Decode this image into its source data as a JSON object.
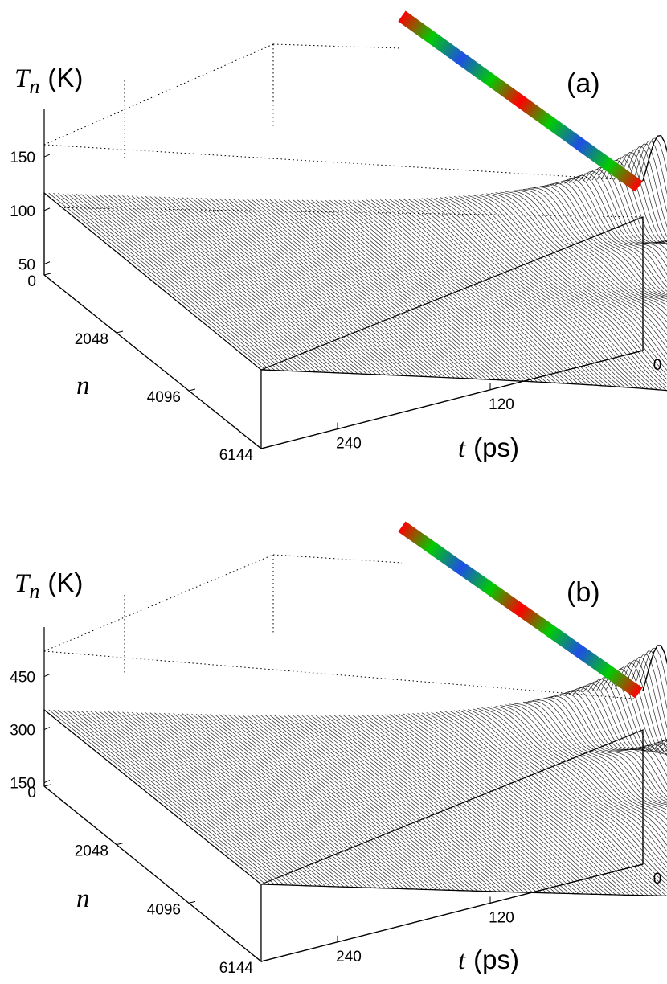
{
  "chart_data": [
    {
      "type": "surface",
      "panel_label": "(a)",
      "zlabel": {
        "var": "T",
        "sub": "n",
        "unit": "(K)"
      },
      "xlabel": {
        "var": "t",
        "unit": "(ps)"
      },
      "ylabel": {
        "var": "n"
      },
      "z_ticks": [
        "150",
        "100",
        "50"
      ],
      "z_tick_values": [
        150,
        100,
        50
      ],
      "zlim": [
        40,
        195
      ],
      "n_ticks": [
        "0",
        "2048",
        "4096",
        "6144"
      ],
      "n_tick_values": [
        0,
        2048,
        4096,
        6144
      ],
      "t_ticks": [
        "0",
        "120",
        "240"
      ],
      "t_tick_values": [
        0,
        120,
        240
      ],
      "tlim": [
        0,
        300
      ],
      "nlim": [
        0,
        6144
      ],
      "baseline_T": 110,
      "peaks": [
        {
          "n": 500,
          "t": 0,
          "T": 195
        },
        {
          "n": 2300,
          "t": 0,
          "T": 168
        },
        {
          "n": 4100,
          "t": 0,
          "T": 168
        },
        {
          "n": 6144,
          "t": 0,
          "T": 95
        }
      ],
      "colorbar_pattern": [
        "red",
        "green",
        "blue",
        "green",
        "red",
        "green",
        "blue",
        "green",
        "red"
      ],
      "colors": {
        "red": "#ff0000",
        "green": "#00cc00",
        "blue": "#1e4ee6",
        "mesh": "#000000"
      }
    },
    {
      "type": "surface",
      "panel_label": "(b)",
      "zlabel": {
        "var": "T",
        "sub": "n",
        "unit": "(K)"
      },
      "xlabel": {
        "var": "t",
        "unit": "(ps)"
      },
      "ylabel": {
        "var": "n"
      },
      "z_ticks": [
        "450",
        "300",
        "150"
      ],
      "z_tick_values": [
        450,
        300,
        150
      ],
      "zlim": [
        140,
        590
      ],
      "n_ticks": [
        "0",
        "2048",
        "4096",
        "6144"
      ],
      "n_tick_values": [
        0,
        2048,
        4096,
        6144
      ],
      "t_ticks": [
        "0",
        "120",
        "240"
      ],
      "t_tick_values": [
        0,
        120,
        240
      ],
      "tlim": [
        0,
        300
      ],
      "nlim": [
        0,
        6144
      ],
      "baseline_T": 310,
      "peaks": [
        {
          "n": 500,
          "t": 0,
          "T": 590
        },
        {
          "n": 2300,
          "t": 0,
          "T": 540
        },
        {
          "n": 4100,
          "t": 0,
          "T": 540
        },
        {
          "n": 6144,
          "t": 0,
          "T": 340
        }
      ],
      "colorbar_pattern": [
        "red",
        "green",
        "blue",
        "green",
        "red",
        "green",
        "blue",
        "green",
        "red"
      ],
      "colors": {
        "red": "#ff0000",
        "green": "#00cc00",
        "blue": "#1e4ee6",
        "mesh": "#000000"
      }
    }
  ]
}
